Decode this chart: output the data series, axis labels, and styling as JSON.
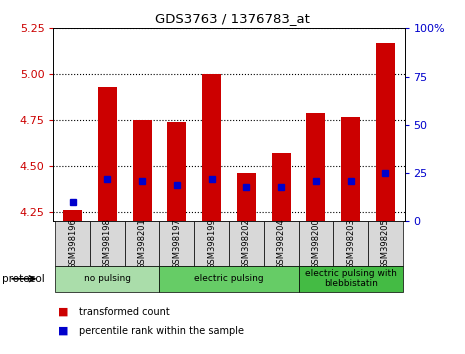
{
  "title": "GDS3763 / 1376783_at",
  "samples": [
    "GSM398196",
    "GSM398198",
    "GSM398201",
    "GSM398197",
    "GSM398199",
    "GSM398202",
    "GSM398204",
    "GSM398200",
    "GSM398203",
    "GSM398205"
  ],
  "transformed_count": [
    4.26,
    4.93,
    4.75,
    4.74,
    5.0,
    4.46,
    4.57,
    4.79,
    4.77,
    5.17
  ],
  "percentile_rank": [
    10,
    22,
    21,
    19,
    22,
    18,
    18,
    21,
    21,
    25
  ],
  "ylim": [
    4.2,
    5.25
  ],
  "yticks": [
    4.25,
    4.5,
    4.75,
    5.0,
    5.25
  ],
  "right_yticks": [
    0,
    25,
    50,
    75,
    100
  ],
  "bar_color": "#cc0000",
  "dot_color": "#0000cc",
  "groups": [
    {
      "label": "no pulsing",
      "start": 0,
      "end": 2,
      "color": "#aaddaa"
    },
    {
      "label": "electric pulsing",
      "start": 3,
      "end": 6,
      "color": "#66cc66"
    },
    {
      "label": "electric pulsing with\nblebbistatin",
      "start": 7,
      "end": 9,
      "color": "#44bb44"
    }
  ],
  "protocol_label": "protocol",
  "legend_items": [
    {
      "label": "transformed count",
      "color": "#cc0000"
    },
    {
      "label": "percentile rank within the sample",
      "color": "#0000cc"
    }
  ],
  "plot_bg": "#ffffff",
  "left_label_color": "#cc0000",
  "right_label_color": "#0000cc",
  "tick_box_color": "#d8d8d8"
}
